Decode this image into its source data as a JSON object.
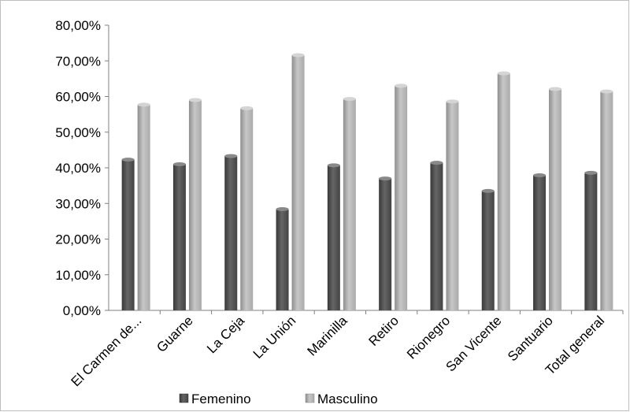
{
  "chart_data": {
    "type": "bar",
    "title": "",
    "xlabel": "",
    "ylabel": "",
    "categories": [
      "El Carmen de...",
      "Guarne",
      "La Ceja",
      "La Unión",
      "Marinilla",
      "Retiro",
      "Rionegro",
      "San Vicente",
      "Santuario",
      "Total general"
    ],
    "series": [
      {
        "name": "Femenino",
        "values": [
          42.3,
          41.0,
          43.3,
          28.4,
          40.7,
          37.0,
          41.4,
          33.5,
          37.9,
          38.6
        ],
        "color": "#4a4a4a"
      },
      {
        "name": "Masculino",
        "values": [
          57.7,
          59.0,
          56.7,
          71.6,
          59.3,
          63.0,
          58.6,
          66.5,
          62.1,
          61.4
        ],
        "color": "#bdbdbd"
      }
    ],
    "ylim": [
      0,
      80
    ],
    "ytick_labels": [
      "0,00%",
      "10,00%",
      "20,00%",
      "30,00%",
      "40,00%",
      "50,00%",
      "60,00%",
      "70,00%",
      "80,00%"
    ],
    "grid": false,
    "legend_position": "bottom"
  }
}
